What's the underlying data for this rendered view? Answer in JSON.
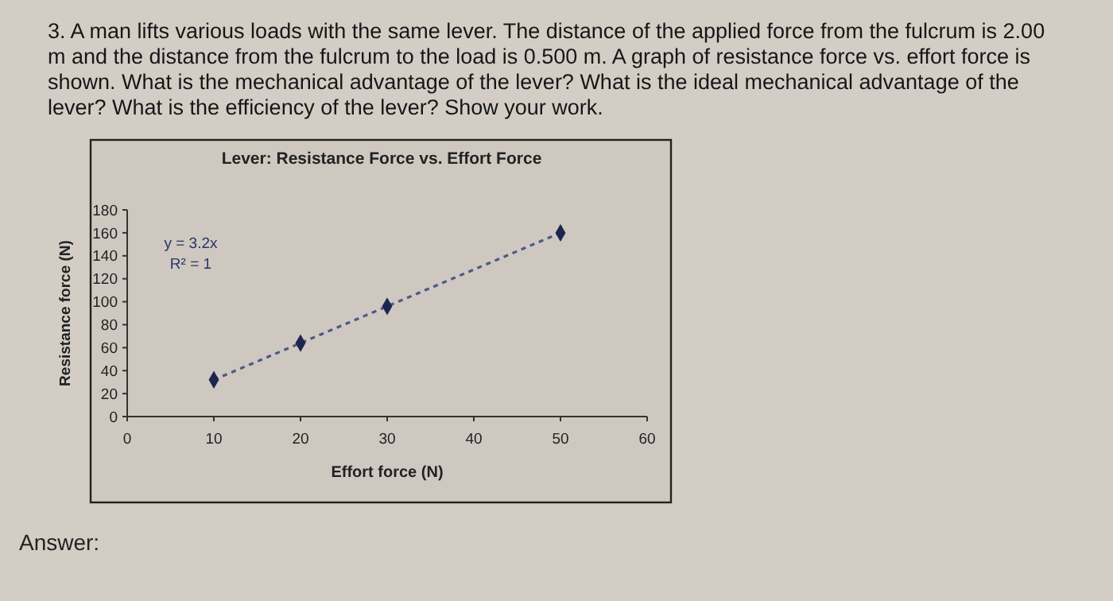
{
  "chart_data": {
    "type": "scatter",
    "title": "Lever: Resistance Force vs. Effort Force",
    "xlabel": "Effort force (N)",
    "ylabel": "Resistance force (N)",
    "xlim": [
      0,
      60
    ],
    "xticks": [
      0,
      10,
      20,
      30,
      40,
      50,
      60
    ],
    "ylim": [
      0,
      180
    ],
    "yticks": [
      0,
      20,
      40,
      60,
      80,
      100,
      120,
      140,
      160,
      180
    ],
    "grid": false,
    "series": [
      {
        "type": "line",
        "color": "#4a5a86",
        "x": [
          10,
          50
        ],
        "values": [
          32,
          160
        ],
        "line_style": "dashed",
        "marker": "none"
      },
      {
        "color": "#1c2650",
        "x": [
          10,
          20,
          30,
          50
        ],
        "values": [
          32,
          64,
          96,
          160
        ],
        "marker": "diamond"
      }
    ],
    "annotations": [
      "3. A man lifts various loads with the same lever. The distance of the applied force from the fulcrum is 2.00 m and the distance from the fulcrum to the load is 0.500 m. A graph of resistance force vs. effort force is shown. What is the mechanical advantage of the lever? What is the ideal mechanical advantage of the lever? What is the efficiency of the lever? Show your work.",
      "y = 3.2x",
      "R² = 1",
      "Answer:"
    ]
  }
}
